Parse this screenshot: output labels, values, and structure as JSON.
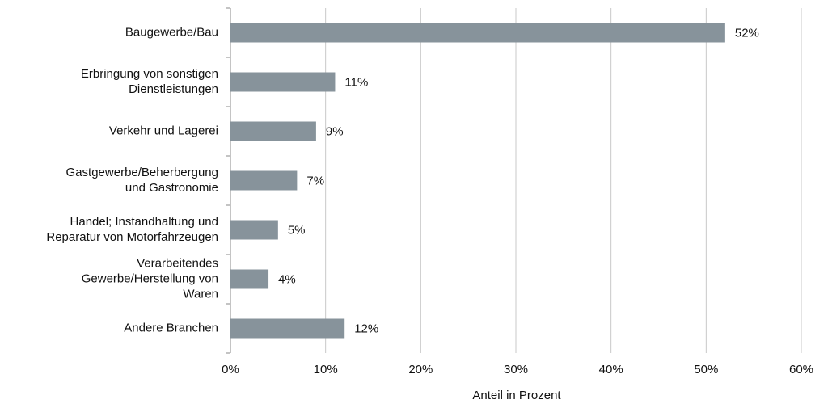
{
  "chart_data": {
    "type": "hbar",
    "categories": [
      [
        "Baugewerbe/Bau"
      ],
      [
        "Erbringung von sonstigen",
        "Dienstleistungen"
      ],
      [
        "Verkehr und Lagerei"
      ],
      [
        "Gastgewerbe/Beherbergung",
        "und Gastronomie"
      ],
      [
        "Handel; Instandhaltung und",
        "Reparatur von Motorfahrzeugen"
      ],
      [
        "Verarbeitendes",
        "Gewerbe/Herstellung von",
        "Waren"
      ],
      [
        "Andere Branchen"
      ]
    ],
    "values": [
      52,
      11,
      9,
      7,
      5,
      4,
      12
    ],
    "value_labels": [
      "52%",
      "11%",
      "9%",
      "7%",
      "5%",
      "4%",
      "12%"
    ],
    "color": "#87939b",
    "xlabel": "Anteil in Prozent",
    "xlim": [
      0,
      60
    ],
    "xticks": [
      {
        "value": 0,
        "label": "0%"
      },
      {
        "value": 10,
        "label": "10%"
      },
      {
        "value": 20,
        "label": "20%"
      },
      {
        "value": 30,
        "label": "30%"
      },
      {
        "value": 40,
        "label": "40%"
      },
      {
        "value": 50,
        "label": "50%"
      },
      {
        "value": 60,
        "label": "60%"
      }
    ],
    "grid": true
  }
}
